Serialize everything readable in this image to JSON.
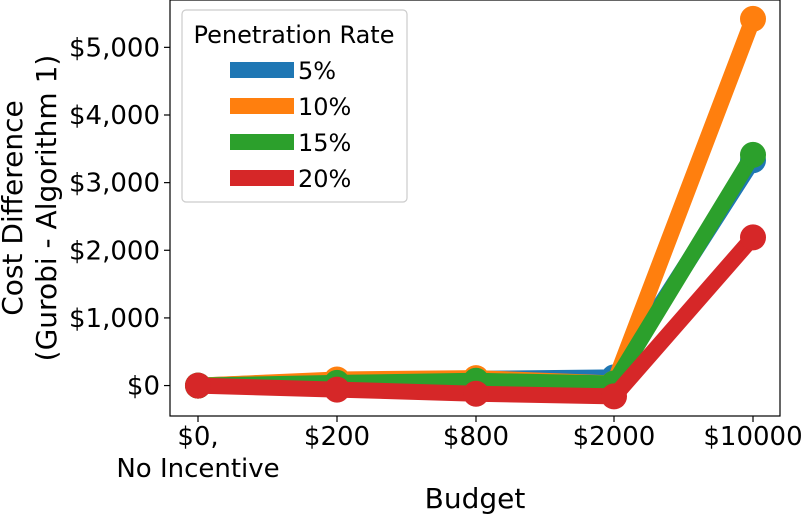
{
  "chart_data": {
    "type": "line",
    "categories": [
      "$0,\nNo Incentive",
      "$200",
      "$800",
      "$2000",
      "$10000"
    ],
    "xlabel": "Budget",
    "ylabel": [
      "Cost Difference",
      "(Gurobi - Algorithm 1)"
    ],
    "ylim": [
      -450,
      5700
    ],
    "yticks": [
      0,
      1000,
      2000,
      3000,
      4000,
      5000
    ],
    "ytick_labels": [
      "$0",
      "$1,000",
      "$2,000",
      "$3,000",
      "$4,000",
      "$5,000"
    ],
    "legend": {
      "title": "Penetration Rate",
      "placement": "upper-left"
    },
    "grid": false,
    "series": [
      {
        "name": "5%",
        "color": "#1f77b4",
        "values": [
          0,
          80,
          100,
          120,
          3330
        ]
      },
      {
        "name": "10%",
        "color": "#ff7f0e",
        "values": [
          0,
          90,
          110,
          30,
          5420
        ]
      },
      {
        "name": "15%",
        "color": "#2ca02c",
        "values": [
          0,
          40,
          70,
          30,
          3410
        ]
      },
      {
        "name": "20%",
        "color": "#d62728",
        "values": [
          0,
          -60,
          -120,
          -160,
          2190
        ]
      }
    ]
  }
}
